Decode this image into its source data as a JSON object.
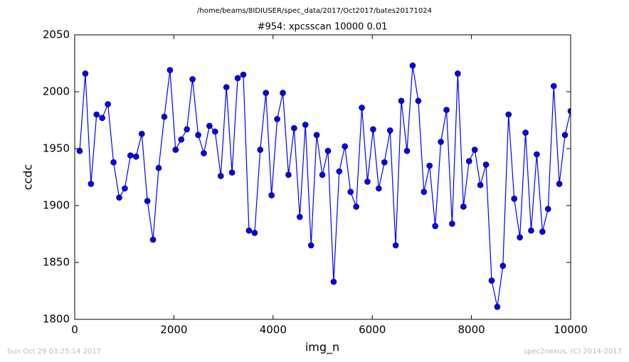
{
  "chart_data": {
    "type": "line",
    "suptitle": "/home/beams/8IDIUSER/spec_data/2017/Oct2017/bates20171024",
    "title": "#954: xpcsscan 10000 0.01",
    "x_label": "img_n",
    "y_label": "ccdc",
    "footer_left": "Sun Oct 29 03:25:14 2017",
    "footer_right": "spec2nexus, (C) 2014-2017",
    "xlim": [
      0,
      10000
    ],
    "xticks": [
      0,
      2000,
      4000,
      6000,
      8000,
      10000
    ],
    "ylim": [
      1800,
      2050
    ],
    "yticks": [
      1800,
      1850,
      1900,
      1950,
      2000,
      2050
    ],
    "grid": false,
    "x": [
      100,
      214,
      328,
      441,
      555,
      669,
      783,
      897,
      1010,
      1124,
      1238,
      1352,
      1466,
      1579,
      1693,
      1807,
      1921,
      2034,
      2148,
      2262,
      2376,
      2490,
      2603,
      2717,
      2831,
      2945,
      3059,
      3172,
      3286,
      3400,
      3514,
      3628,
      3741,
      3855,
      3969,
      4083,
      4197,
      4310,
      4424,
      4538,
      4652,
      4766,
      4879,
      4993,
      5107,
      5221,
      5334,
      5448,
      5562,
      5676,
      5790,
      5903,
      6017,
      6131,
      6245,
      6359,
      6472,
      6586,
      6700,
      6814,
      6928,
      7041,
      7155,
      7269,
      7383,
      7497,
      7610,
      7724,
      7838,
      7952,
      8066,
      8179,
      8293,
      8407,
      8521,
      8634,
      8748,
      8862,
      8976,
      9090,
      9203,
      9317,
      9431,
      9545,
      9659,
      9772,
      9886,
      10000
    ],
    "series": [
      {
        "color": "#0000ff",
        "values": [
          1948,
          2016,
          1919,
          1980,
          1977,
          1989,
          1938,
          1907,
          1915,
          1944,
          1943,
          1963,
          1904,
          1870,
          1933,
          1978,
          2019,
          1949,
          1958,
          1967,
          2011,
          1962,
          1946,
          1970,
          1965,
          1926,
          2004,
          1929,
          2012,
          2015,
          1878,
          1876,
          1949,
          1999,
          1909,
          1976,
          1999,
          1927,
          1968,
          1890,
          1971,
          1865,
          1962,
          1927,
          1948,
          1833,
          1930,
          1952,
          1912,
          1899,
          1986,
          1921,
          1967,
          1915,
          1938,
          1966,
          1865,
          1992,
          1948,
          2023,
          1992,
          1912,
          1935,
          1882,
          1956,
          1984,
          1884,
          2016,
          1899,
          1939,
          1949,
          1918,
          1936,
          1834,
          1811,
          1847,
          1980,
          1906,
          1872,
          1964,
          1878,
          1945,
          1877,
          1897,
          2005,
          1919,
          1962,
          1983
        ]
      }
    ]
  }
}
